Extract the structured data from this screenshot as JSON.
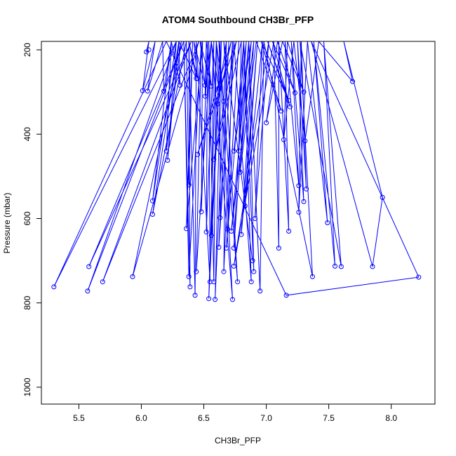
{
  "chart_data": {
    "type": "line",
    "title": "ATOM4 Southbound CH3Br_PFP",
    "xlabel": "CH3Br_PFP",
    "ylabel": "Pressure (mbar)",
    "xlim": [
      5.2,
      8.35
    ],
    "ylim": [
      1040,
      180
    ],
    "y_reversed": true,
    "xticks": [
      5.5,
      6.0,
      6.5,
      7.0,
      7.5,
      8.0
    ],
    "xtick_labels": [
      "5.5",
      "6.0",
      "6.5",
      "7.0",
      "7.5",
      "8.0"
    ],
    "yticks": [
      200,
      400,
      600,
      800,
      1000
    ],
    "ytick_labels": [
      "200",
      "400",
      "600",
      "800",
      "1000"
    ],
    "grid": false,
    "legend": "none",
    "series_color": "#0000ff",
    "series": [
      {
        "points": [
          [
            6.06,
            200
          ],
          [
            6.04,
            205
          ],
          [
            6.06,
            180
          ],
          [
            6.01,
            297
          ],
          [
            6.11,
            180
          ],
          [
            6.05,
            298
          ],
          [
            6.17,
            180
          ],
          [
            6.18,
            298
          ],
          [
            6.24,
            180
          ],
          [
            6.31,
            284
          ],
          [
            6.3,
            180
          ],
          [
            6.44,
            268
          ],
          [
            6.38,
            180
          ],
          [
            6.45,
            268
          ],
          [
            6.42,
            180
          ],
          [
            6.51,
            284
          ],
          [
            6.47,
            180
          ],
          [
            6.56,
            286
          ],
          [
            6.52,
            180
          ],
          [
            6.51,
            310
          ],
          [
            6.56,
            180
          ],
          [
            6.62,
            291
          ],
          [
            6.6,
            180
          ],
          [
            6.66,
            322
          ],
          [
            6.68,
            180
          ],
          [
            6.61,
            328
          ],
          [
            6.72,
            180
          ],
          [
            6.45,
            448
          ],
          [
            6.76,
            180
          ],
          [
            6.58,
            460
          ],
          [
            6.8,
            180
          ],
          [
            6.78,
            440
          ],
          [
            6.84,
            180
          ],
          [
            6.74,
            440
          ],
          [
            6.88,
            180
          ],
          [
            6.79,
            490
          ],
          [
            6.92,
            180
          ],
          [
            7.12,
            345
          ],
          [
            6.96,
            180
          ],
          [
            7.18,
            320
          ],
          [
            7.01,
            180
          ],
          [
            7.19,
            335
          ],
          [
            7.05,
            180
          ],
          [
            7.23,
            302
          ],
          [
            7.09,
            180
          ],
          [
            7.0,
            373
          ],
          [
            7.13,
            180
          ],
          [
            7.3,
            300
          ],
          [
            7.17,
            180
          ],
          [
            7.14,
            413
          ],
          [
            7.22,
            180
          ],
          [
            7.31,
            416
          ],
          [
            7.42,
            180
          ],
          [
            7.69,
            275
          ],
          [
            7.62,
            180
          ],
          [
            7.93,
            550
          ],
          [
            7.85,
            714
          ],
          [
            7.36,
            180
          ],
          [
            8.22,
            739
          ],
          [
            7.16,
            782
          ],
          [
            6.2,
            180
          ],
          [
            5.3,
            762
          ],
          [
            6.28,
            180
          ],
          [
            5.57,
            772
          ],
          [
            6.34,
            180
          ],
          [
            5.58,
            714
          ],
          [
            6.4,
            180
          ],
          [
            5.69,
            750
          ],
          [
            6.46,
            180
          ],
          [
            5.93,
            738
          ],
          [
            6.32,
            180
          ],
          [
            6.2,
            440
          ],
          [
            6.24,
            180
          ],
          [
            6.09,
            558
          ],
          [
            6.28,
            180
          ],
          [
            6.21,
            462
          ],
          [
            6.3,
            180
          ],
          [
            6.09,
            590
          ],
          [
            6.36,
            180
          ],
          [
            6.38,
            520
          ],
          [
            6.41,
            180
          ],
          [
            6.36,
            624
          ],
          [
            6.49,
            180
          ],
          [
            6.48,
            584
          ],
          [
            6.53,
            180
          ],
          [
            6.52,
            632
          ],
          [
            6.58,
            180
          ],
          [
            6.56,
            640
          ],
          [
            6.63,
            180
          ],
          [
            6.63,
            598
          ],
          [
            6.7,
            180
          ],
          [
            6.62,
            668
          ],
          [
            6.73,
            180
          ],
          [
            6.69,
            625
          ],
          [
            6.78,
            180
          ],
          [
            6.68,
            670
          ],
          [
            6.82,
            180
          ],
          [
            6.74,
            670
          ],
          [
            6.86,
            180
          ],
          [
            6.72,
            630
          ],
          [
            6.9,
            180
          ],
          [
            6.8,
            638
          ],
          [
            6.93,
            180
          ],
          [
            6.83,
            570
          ],
          [
            6.97,
            180
          ],
          [
            6.91,
            600
          ],
          [
            7.02,
            180
          ],
          [
            6.74,
            713
          ],
          [
            7.06,
            180
          ],
          [
            7.1,
            670
          ],
          [
            7.1,
            180
          ],
          [
            7.18,
            630
          ],
          [
            7.15,
            180
          ],
          [
            7.26,
            522
          ],
          [
            7.2,
            180
          ],
          [
            7.3,
            560
          ],
          [
            7.25,
            180
          ],
          [
            7.32,
            530
          ],
          [
            7.28,
            180
          ],
          [
            7.26,
            585
          ],
          [
            7.33,
            180
          ],
          [
            7.49,
            610
          ],
          [
            7.38,
            180
          ],
          [
            7.55,
            713
          ],
          [
            7.46,
            180
          ],
          [
            7.6,
            714
          ],
          [
            7.27,
            180
          ],
          [
            7.37,
            738
          ],
          [
            6.98,
            180
          ],
          [
            6.95,
            772
          ],
          [
            6.86,
            180
          ],
          [
            6.9,
            726
          ],
          [
            6.82,
            180
          ],
          [
            6.88,
            750
          ],
          [
            6.74,
            180
          ],
          [
            6.66,
            726
          ],
          [
            6.68,
            180
          ],
          [
            6.59,
            792
          ],
          [
            6.64,
            180
          ],
          [
            6.54,
            790
          ],
          [
            6.6,
            180
          ],
          [
            6.58,
            750
          ],
          [
            6.54,
            180
          ],
          [
            6.55,
            750
          ],
          [
            6.44,
            180
          ],
          [
            6.43,
            782
          ],
          [
            6.38,
            180
          ],
          [
            6.39,
            762
          ],
          [
            6.34,
            180
          ],
          [
            6.38,
            738
          ],
          [
            6.48,
            180
          ],
          [
            6.44,
            726
          ],
          [
            6.56,
            180
          ],
          [
            6.73,
            792
          ],
          [
            6.62,
            180
          ],
          [
            6.77,
            750
          ],
          [
            6.66,
            180
          ],
          [
            6.89,
            700
          ]
        ]
      }
    ]
  }
}
